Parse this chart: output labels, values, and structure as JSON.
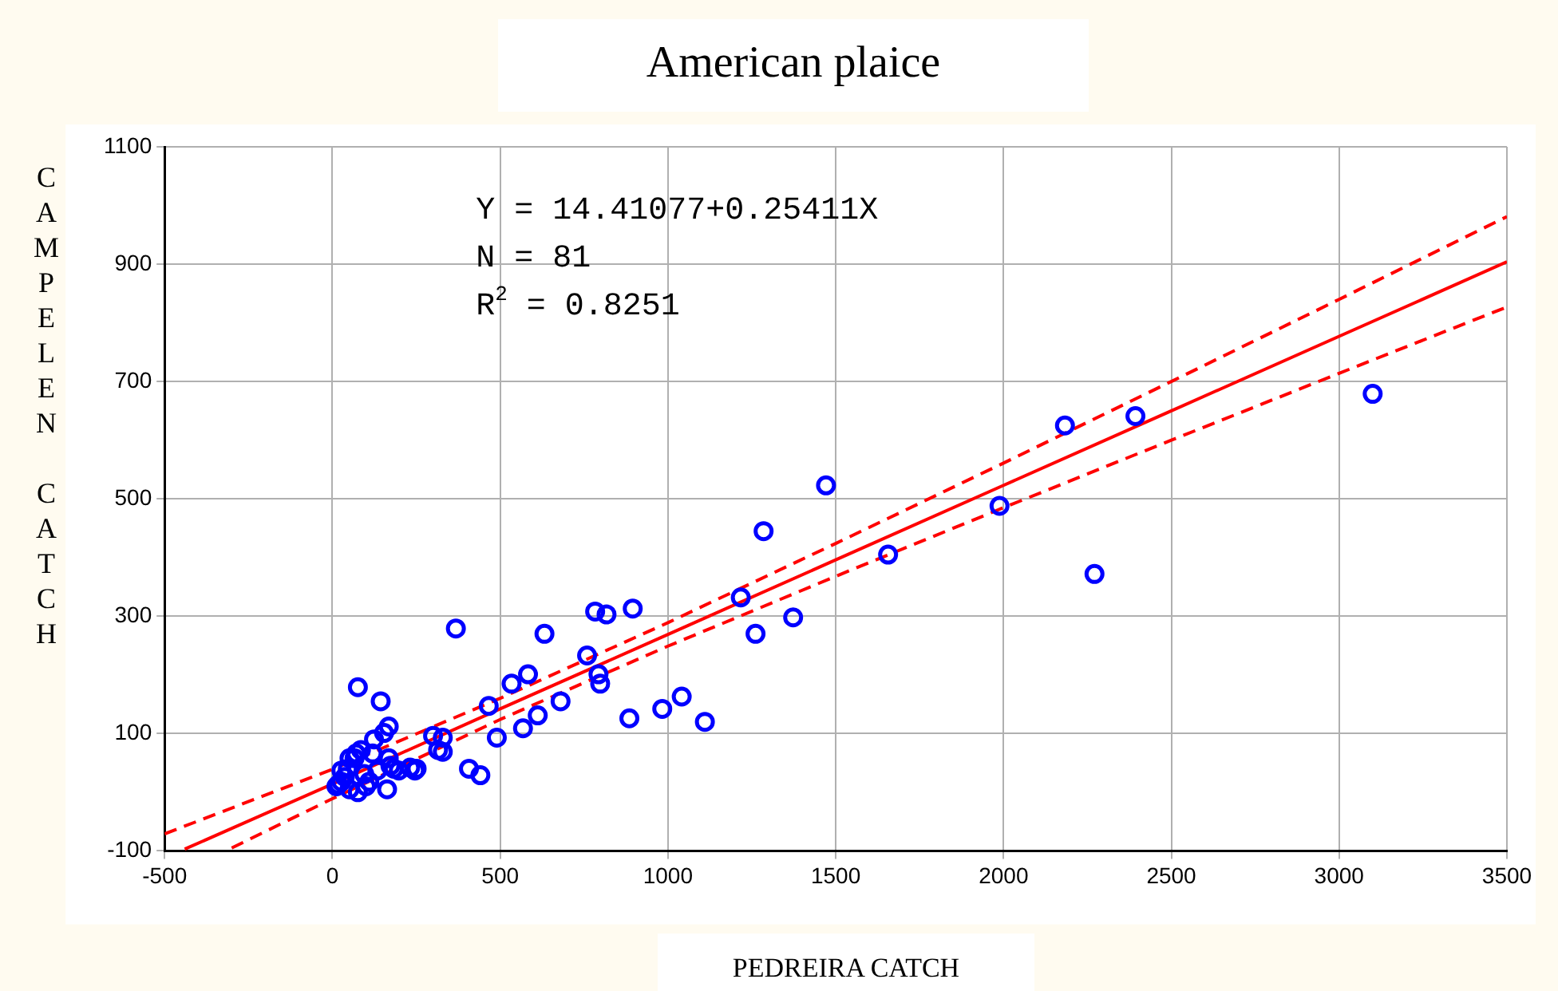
{
  "chart_data": {
    "type": "scatter",
    "title": "American plaice",
    "xlabel": "PEDREIRA CATCH",
    "ylabel": "CAMPELEN CATCH",
    "xlim": [
      -500,
      3500
    ],
    "xticks": [
      -500,
      0,
      500,
      1000,
      1500,
      2000,
      2500,
      3000,
      3500
    ],
    "ylim": [
      -100,
      1100
    ],
    "yticks": [
      -100,
      100,
      300,
      500,
      700,
      900,
      1100
    ],
    "grid": true,
    "legend": false,
    "marker": "circle",
    "annotations": [
      "Y = 14.41077+0.25411X",
      "N = 81",
      "R$^{2}$ = 0.8251"
    ],
    "series": [
      {
        "color": "#0000ff",
        "x": [
          17,
          37,
          51,
          27,
          66,
          85,
          76,
          144,
          95,
          110,
          134,
          154,
          168,
          163,
          173,
          198,
          232,
          246,
          124,
          300,
          329,
          329,
          368,
          407,
          441,
          490,
          466,
          12,
          27,
          46,
          71,
          51,
          100,
          168,
          183,
          120,
          76,
          251,
          315,
          1217,
          1261,
          1373,
          1285,
          1471,
          1656,
          1988,
          2183,
          2393,
          2271,
          3100,
          632,
          783,
          817,
          895,
          759,
          793,
          798,
          583,
          534,
          680,
          612,
          568,
          885,
          983,
          1041,
          1110
        ],
        "values": [
          13,
          26,
          5,
          37,
          58,
          72,
          179,
          155,
          31,
          18,
          37,
          101,
          112,
          5,
          45,
          37,
          42,
          37,
          90,
          96,
          93,
          69,
          279,
          40,
          29,
          93,
          147,
          10,
          18,
          40,
          66,
          58,
          10,
          58,
          40,
          66,
          0,
          40,
          72,
          332,
          270,
          298,
          445,
          523,
          405,
          488,
          625,
          641,
          372,
          679,
          270,
          308,
          303,
          313,
          233,
          201,
          185,
          201,
          185,
          155,
          131,
          109,
          126,
          142,
          163,
          120
        ]
      },
      {
        "type": "line",
        "color": "#ff0000",
        "marker": "none",
        "line_style": "solid",
        "x": [
          -440,
          0,
          500,
          1000,
          1500,
          2000,
          2500,
          3000,
          3500
        ],
        "values": [
          -97,
          14,
          142,
          269,
          396,
          523,
          650,
          777,
          904
        ]
      },
      {
        "type": "line",
        "color": "#ff0000",
        "marker": "none",
        "line_style": "dashed",
        "x": [
          -500,
          0,
          500,
          1000,
          1500,
          2000,
          2500,
          3000,
          3500
        ],
        "values": [
          -71,
          39,
          160,
          289,
          424,
          561,
          700,
          840,
          981
        ]
      },
      {
        "type": "line",
        "color": "#ff0000",
        "marker": "none",
        "line_style": "dashed",
        "x": [
          -300,
          0,
          500,
          1000,
          1500,
          2000,
          2500,
          3000,
          3500
        ],
        "values": [
          -95,
          -11,
          124,
          249,
          368,
          485,
          600,
          714,
          827
        ]
      }
    ]
  }
}
